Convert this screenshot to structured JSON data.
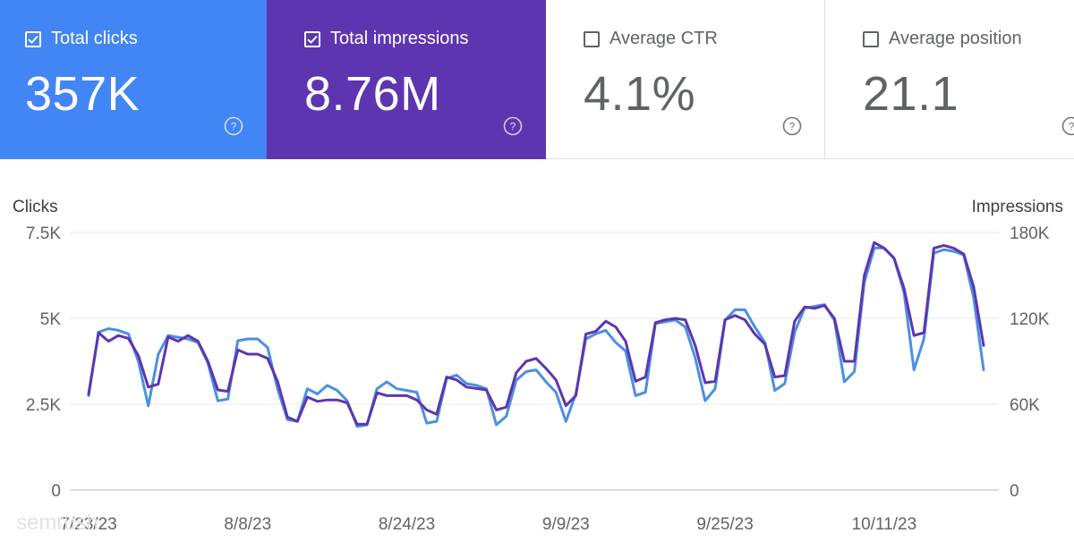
{
  "metrics": [
    {
      "label": "Total clicks",
      "value": "357K",
      "checked": true,
      "color": "#4285f4"
    },
    {
      "label": "Total impressions",
      "value": "8.76M",
      "checked": true,
      "color": "#5e35b1"
    },
    {
      "label": "Average CTR",
      "value": "4.1%",
      "checked": false,
      "color": "#ffffff"
    },
    {
      "label": "Average position",
      "value": "21.1",
      "checked": false,
      "color": "#ffffff"
    }
  ],
  "watermark": "semrush"
}
